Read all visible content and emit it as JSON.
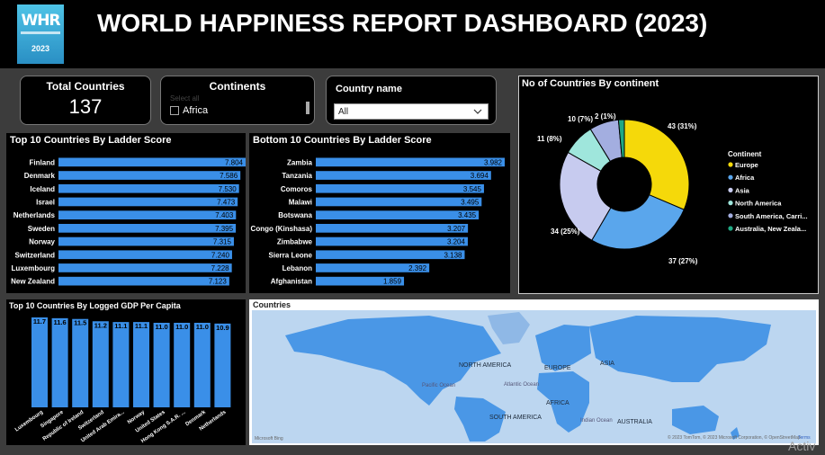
{
  "header": {
    "title": "WORLD HAPPINESS REPORT DASHBOARD (2023)",
    "logo_text": "WHR",
    "logo_year": "2023"
  },
  "kpi": {
    "label": "Total Countries",
    "value": "137"
  },
  "continents_slicer": {
    "label": "Continents",
    "hint": "Select all",
    "items": [
      "Africa"
    ]
  },
  "country_slicer": {
    "label": "Country name",
    "selected": "All"
  },
  "colors": {
    "bar": "#3a8fe8",
    "europe": "#f5d90a",
    "africa": "#5aa6ec",
    "asia": "#c7cbef",
    "north_america": "#9fe6dc",
    "south_america": "#a3aee0",
    "australia": "#20a883"
  },
  "chart_data": [
    {
      "type": "bar",
      "orientation": "horizontal",
      "title": "Top 10 Countries By Ladder Score",
      "categories": [
        "Finland",
        "Denmark",
        "Iceland",
        "Israel",
        "Netherlands",
        "Sweden",
        "Norway",
        "Switzerland",
        "Luxembourg",
        "New Zealand"
      ],
      "values": [
        7.804,
        7.586,
        7.53,
        7.473,
        7.403,
        7.395,
        7.315,
        7.24,
        7.228,
        7.123
      ],
      "labels": [
        "7.804",
        "7.586",
        "7.530",
        "7.473",
        "7.403",
        "7.395",
        "7.315",
        "7.240",
        "7.228",
        "7.123"
      ],
      "xlim": [
        0,
        7.804
      ]
    },
    {
      "type": "bar",
      "orientation": "horizontal",
      "title": "Bottom 10 Countries By Ladder Score",
      "categories": [
        "Zambia",
        "Tanzania",
        "Comoros",
        "Malawi",
        "Botswana",
        "Congo (Kinshasa)",
        "Zimbabwe",
        "Sierra Leone",
        "Lebanon",
        "Afghanistan"
      ],
      "values": [
        3.982,
        3.694,
        3.545,
        3.495,
        3.435,
        3.207,
        3.204,
        3.138,
        2.392,
        1.859
      ],
      "labels": [
        "3.982",
        "3.694",
        "3.545",
        "3.495",
        "3.435",
        "3.207",
        "3.204",
        "3.138",
        "2.392",
        "1.859"
      ],
      "xlim": [
        0,
        3.982
      ]
    },
    {
      "type": "pie",
      "variant": "donut",
      "title": "No of Countries By continent",
      "legend_title": "Continent",
      "legend_position": "right",
      "categories": [
        "Europe",
        "Africa",
        "Asia",
        "North America",
        "South America, Carri...",
        "Australia, New Zeala..."
      ],
      "values": [
        43,
        37,
        34,
        11,
        10,
        2
      ],
      "labels": [
        "43 (31%)",
        "37 (27%)",
        "34 (25%)",
        "11 (8%)",
        "10 (7%)",
        "2 (1%)"
      ]
    },
    {
      "type": "bar",
      "orientation": "vertical",
      "title": "Top 10 Countries By Logged GDP Per Capita",
      "categories": [
        "Luxembourg",
        "Singapore",
        "Republic of Ireland",
        "Switzerland",
        "United Arab Emira...",
        "Norway",
        "United States",
        "Hong Kong S.A.R. ...",
        "Denmark",
        "Netherlands"
      ],
      "values": [
        11.7,
        11.6,
        11.5,
        11.2,
        11.1,
        11.1,
        11.0,
        11.0,
        11.0,
        10.9
      ],
      "labels": [
        "11.7",
        "11.6",
        "11.5",
        "11.2",
        "11.1",
        "11.1",
        "11.0",
        "11.0",
        "11.0",
        "10.9"
      ],
      "ylim": [
        0,
        11.7
      ]
    }
  ],
  "map": {
    "title": "Countries",
    "labels": {
      "north_america": "NORTH AMERICA",
      "europe": "EUROPE",
      "asia": "ASIA",
      "africa": "AFRICA",
      "south_america": "SOUTH AMERICA",
      "australia": "AUSTRALIA",
      "pacific": "Pacific Ocean",
      "atlantic": "Atlantic Ocean",
      "indian": "Indian Ocean"
    },
    "attribution": "© 2023 TomTom, © 2023 Microsoft Corporation, © OpenStreetMap",
    "terms": "Terms",
    "brand": "Microsoft Bing"
  },
  "watermark": "Activ"
}
